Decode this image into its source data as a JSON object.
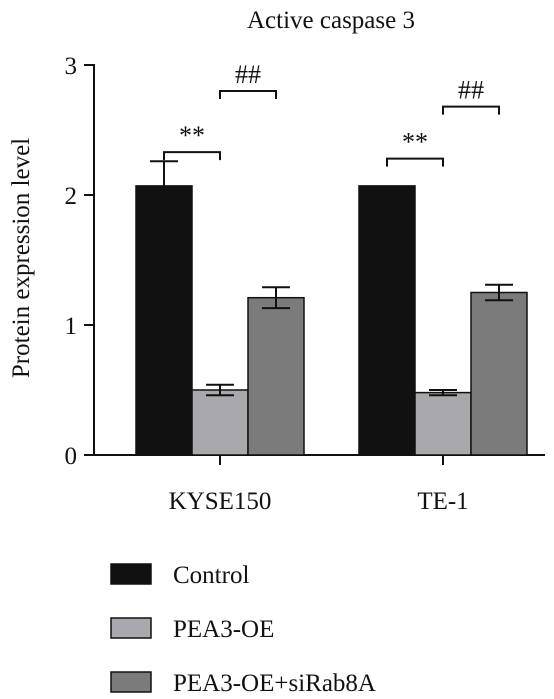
{
  "chart_data": {
    "type": "bar",
    "title": "Active caspase 3",
    "xlabel": "",
    "ylabel": "Protein expression level",
    "ylim": [
      0,
      3
    ],
    "yticks": [
      "0",
      "1",
      "2",
      "3"
    ],
    "categories": [
      "KYSE150",
      "TE-1"
    ],
    "series": [
      {
        "name": "Control",
        "values": [
          2.07,
          2.07
        ],
        "errors": [
          0.19,
          0.0
        ],
        "color": "#111111"
      },
      {
        "name": "PEA3-OE",
        "values": [
          0.5,
          0.48
        ],
        "errors": [
          0.04,
          0.02
        ],
        "color": "#a9a9ad"
      },
      {
        "name": "PEA3-OE+siRab8A",
        "values": [
          1.21,
          1.25
        ],
        "errors": [
          0.08,
          0.06
        ],
        "color": "#7b7b7b"
      }
    ],
    "annotations": [
      {
        "category": 0,
        "from_series": 0,
        "to_series": 1,
        "label": "**",
        "y": 2.33
      },
      {
        "category": 0,
        "from_series": 1,
        "to_series": 2,
        "label": "##",
        "y": 2.8
      },
      {
        "category": 1,
        "from_series": 0,
        "to_series": 1,
        "label": "**",
        "y": 2.28
      },
      {
        "category": 1,
        "from_series": 1,
        "to_series": 2,
        "label": "##",
        "y": 2.68
      }
    ],
    "grid": false,
    "legend_position": "bottom"
  }
}
